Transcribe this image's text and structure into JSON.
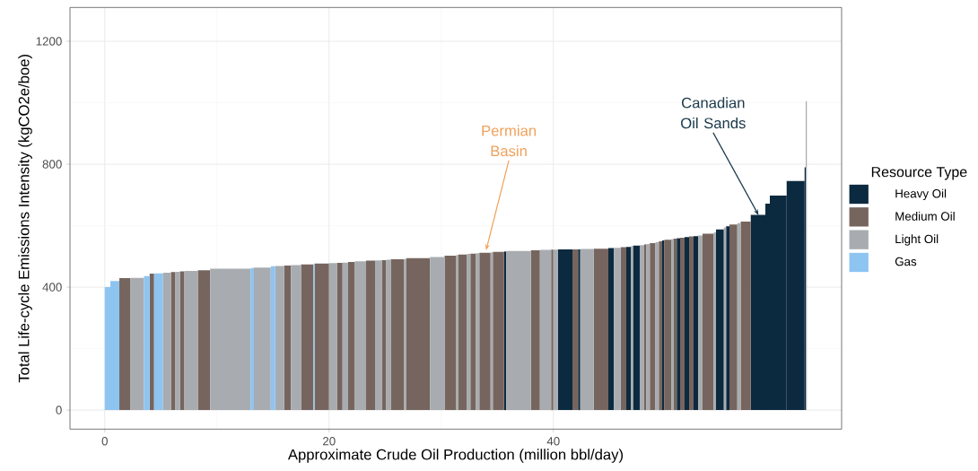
{
  "chart_data": {
    "type": "histogram",
    "xlabel": "Approximate Crude Oil Production (million bbl/day)",
    "ylabel": "Total Life-cycle Emissions Intensity (kgCO2e/boe)",
    "legend_title": "Resource Type",
    "bins": [
      0,
      0.5,
      1.3,
      2.3,
      3.5,
      4.0,
      4.4,
      5.2,
      5.9,
      6.3,
      6.7,
      7.1,
      8.3,
      9.4,
      13.0,
      13.3,
      14.8,
      15.2,
      16.0,
      16.6,
      17.5,
      18.6,
      18.7,
      20.0,
      20.7,
      21.2,
      21.7,
      22.3,
      23.3,
      24.1,
      24.7,
      25.1,
      25.5,
      26.7,
      26.9,
      29.0,
      30.3,
      31.3,
      31.5,
      32.3,
      32.6,
      33.1,
      33.4,
      34.4,
      34.6,
      35.6,
      35.8,
      38.0,
      38.8,
      39.8,
      40.0,
      40.4,
      41.7,
      42.2,
      42.4,
      43.6,
      44.9,
      45.4,
      46.0,
      46.5,
      46.9,
      47.1,
      47.7,
      48.1,
      48.3,
      48.6,
      49.1,
      49.4,
      49.7,
      49.9,
      50.5,
      50.7,
      51.0,
      51.3,
      51.7,
      52.1,
      52.5,
      52.9,
      53.3,
      54.3,
      54.5,
      55.2,
      55.4,
      55.7,
      56.4,
      56.7,
      57.6,
      58.9,
      59.3,
      60.8,
      62.4,
      62.5,
      62.6
    ],
    "series": [
      {
        "name": "Heavy Oil",
        "color": "#0c2a3f",
        "values": [
          null,
          null,
          null,
          null,
          null,
          null,
          null,
          null,
          null,
          null,
          null,
          null,
          null,
          null,
          null,
          null,
          null,
          null,
          null,
          null,
          null,
          null,
          null,
          null,
          null,
          null,
          null,
          null,
          null,
          null,
          null,
          null,
          null,
          null,
          null,
          null,
          null,
          null,
          null,
          null,
          null,
          null,
          null,
          null,
          null,
          516,
          null,
          null,
          null,
          null,
          null,
          523,
          null,
          523,
          null,
          null,
          527,
          null,
          null,
          531,
          null,
          535,
          null,
          null,
          null,
          null,
          null,
          null,
          552,
          null,
          null,
          null,
          559,
          null,
          563,
          null,
          566,
          null,
          null,
          null,
          588,
          null,
          598,
          null,
          null,
          null,
          635,
          672,
          698,
          745,
          790,
          null
        ]
      },
      {
        "name": "Medium Oil",
        "color": "#76655e",
        "values": [
          null,
          null,
          429,
          null,
          null,
          444,
          null,
          null,
          449,
          null,
          451,
          null,
          455,
          null,
          null,
          null,
          null,
          null,
          470,
          null,
          474,
          null,
          477,
          null,
          479,
          null,
          482,
          null,
          486,
          null,
          488,
          null,
          491,
          null,
          494,
          null,
          502,
          null,
          506,
          null,
          509,
          null,
          512,
          null,
          515,
          null,
          null,
          520,
          null,
          522,
          null,
          null,
          523,
          null,
          null,
          525,
          null,
          null,
          530,
          null,
          null,
          null,
          null,
          539,
          null,
          543,
          null,
          549,
          null,
          554,
          null,
          558,
          null,
          561,
          null,
          565,
          null,
          null,
          574,
          null,
          null,
          null,
          null,
          604,
          null,
          613,
          null,
          null,
          null,
          null,
          null,
          null
        ]
      },
      {
        "name": "Light Oil",
        "color": "#a8acb0",
        "values": [
          null,
          null,
          null,
          430,
          null,
          null,
          null,
          447,
          null,
          450,
          null,
          453,
          null,
          460,
          null,
          464,
          null,
          469,
          null,
          472,
          null,
          null,
          null,
          478,
          null,
          480,
          null,
          484,
          null,
          487,
          null,
          489,
          null,
          492,
          null,
          498,
          null,
          504,
          null,
          508,
          null,
          510,
          null,
          513,
          null,
          null,
          518,
          null,
          521,
          null,
          522,
          null,
          null,
          null,
          524,
          null,
          null,
          528,
          null,
          null,
          533,
          null,
          537,
          null,
          540,
          null,
          546,
          null,
          null,
          null,
          556,
          null,
          null,
          null,
          null,
          null,
          null,
          568,
          null,
          578,
          null,
          594,
          null,
          null,
          608,
          null,
          null,
          null,
          null,
          null,
          null,
          1005
        ]
      },
      {
        "name": "Gas",
        "color": "#8ec4f0",
        "values": [
          400,
          420,
          null,
          null,
          436,
          null,
          445,
          null,
          null,
          null,
          null,
          null,
          null,
          null,
          462,
          null,
          468,
          null,
          null,
          null,
          null,
          475,
          null,
          null,
          null,
          null,
          null,
          null,
          null,
          null,
          null,
          null,
          null,
          null,
          null,
          null,
          null,
          null,
          null,
          null,
          null,
          null,
          null,
          null,
          null,
          null,
          null,
          null,
          null,
          null,
          null,
          null,
          null,
          null,
          null,
          null,
          null,
          null,
          null,
          null,
          null,
          null,
          null,
          null,
          null,
          null,
          null,
          null,
          null,
          null,
          null,
          null,
          null,
          null,
          null,
          null,
          null,
          null,
          null,
          null,
          null,
          null,
          null,
          null,
          null,
          null,
          null,
          null,
          null,
          null,
          null,
          null
        ]
      }
    ],
    "xlim": [
      -3.1,
      65.7
    ],
    "xticks": [
      0,
      20,
      40
    ],
    "ylim": [
      -62,
      1310
    ],
    "yticks": [
      0,
      400,
      800,
      1200
    ],
    "grid": true,
    "legend": "right",
    "annotations": [
      {
        "text": "Permian Basin",
        "x": 34.0,
        "y": 520
      },
      {
        "text": "Canadian Oil Sands",
        "x": 58.3,
        "y": 634
      }
    ]
  }
}
